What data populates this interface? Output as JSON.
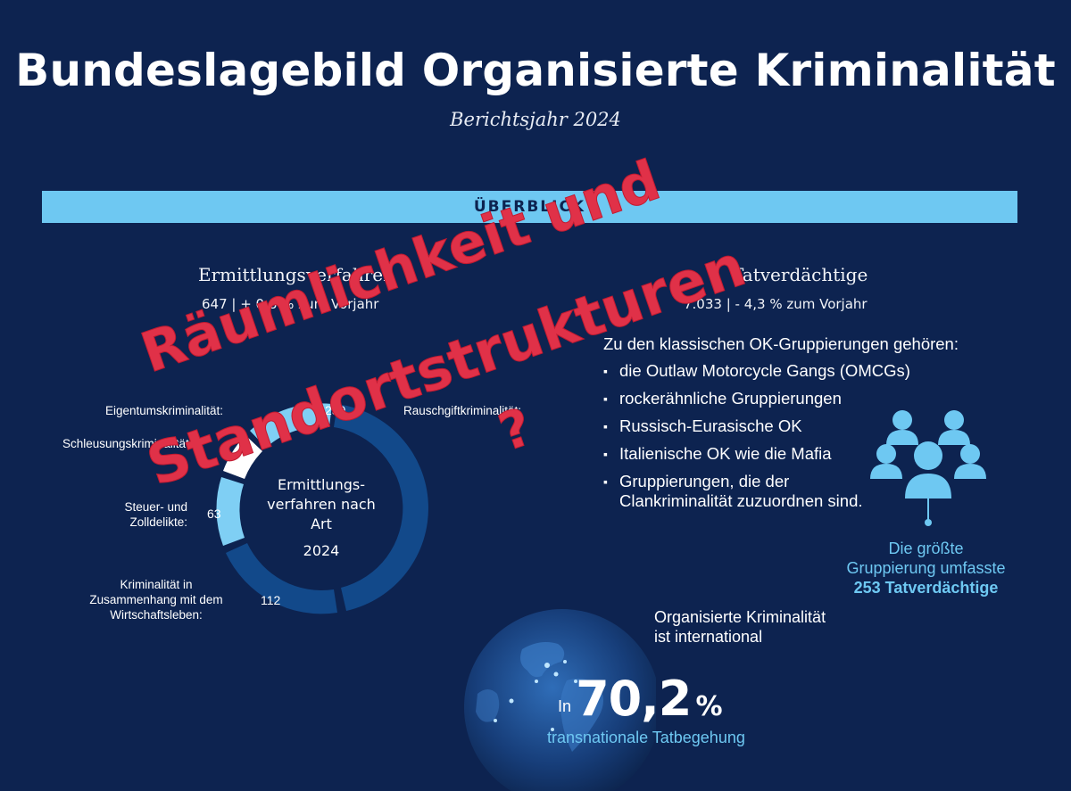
{
  "header": {
    "title": "Bundeslagebild Organisierte Kriminalität",
    "subtitle": "Berichtsjahr 2024",
    "banner": "ÜBERBLICK"
  },
  "stats": {
    "left": {
      "heading": "Ermittlungsverfahren",
      "value": "647 | + 0,8 % zum Vorjahr"
    },
    "right": {
      "heading": "Tatverdächtige",
      "value": "7.033 | - 4,3 % zum Vorjahr"
    }
  },
  "donut": {
    "center_line1": "Ermittlungs-",
    "center_line2": "verfahren nach Art",
    "center_year": "2024",
    "segments": [
      {
        "label": "Eigentumskriminalität:",
        "value": ""
      },
      {
        "label": "Rauschgiftkriminalität:",
        "value": "259"
      },
      {
        "label": "Schleusungskriminalität:",
        "value": ""
      },
      {
        "label_line1": "Steuer- und",
        "label_line2": "Zolldelikte:",
        "value": "63"
      },
      {
        "label_line1": "Kriminalität in",
        "label_line2": "Zusammenhang mit dem",
        "label_line3": "Wirtschaftsleben:",
        "value": "112"
      }
    ],
    "colors": {
      "dark": "#12498a",
      "light": "#7fcff4",
      "white": "#ffffff"
    }
  },
  "groups": {
    "intro": "Zu den klassischen OK-Gruppierungen gehören:",
    "items": [
      "die Outlaw Motorcycle Gangs (OMCGs)",
      "rockerähnliche Gruppierungen",
      "Russisch-Eurasische OK",
      "Italienische OK wie die Mafia",
      "Gruppierungen, die der",
      "Clankriminalität zuzuordnen sind."
    ]
  },
  "biggest_group": {
    "line1": "Die größte",
    "line2": "Gruppierung umfasste",
    "line3": "253 Tatverdächtige",
    "icon": "people-group-icon"
  },
  "international": {
    "line1": "Organisierte Kriminalität",
    "line2": "ist international",
    "prefix": "In",
    "percent": "70,2",
    "percent_sign": "%",
    "caption": "transnationale Tatbegehung",
    "icon": "globe-icon"
  },
  "overlay": {
    "line1": "Räumlichkeit und",
    "line2": "Standortstrukturen",
    "line3": "?",
    "color": "#e03148"
  },
  "colors": {
    "background": "#0d2350",
    "accent": "#6ec8f2"
  }
}
